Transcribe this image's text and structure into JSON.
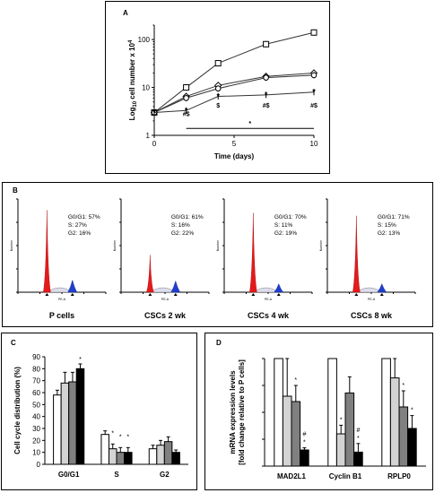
{
  "chart_data": [
    {
      "panel": "A",
      "type": "line",
      "xlabel": "Time (days)",
      "ylabel_prefix": "Log",
      "ylabel_sub": "10",
      "ylabel_mid": " cell number x 10",
      "ylabel_sup": "4",
      "xlim": [
        0,
        10
      ],
      "ylim": [
        1,
        200
      ],
      "yscale": "log",
      "x_ticks": [
        "0",
        "5",
        "10"
      ],
      "y_ticks": [
        "1",
        "10",
        "100"
      ],
      "x": [
        0,
        2,
        4,
        7,
        10
      ],
      "series": [
        {
          "marker": "square",
          "values": [
            3,
            10,
            32,
            80,
            140
          ]
        },
        {
          "marker": "diamond",
          "values": [
            3,
            6.5,
            11,
            17,
            20
          ]
        },
        {
          "marker": "circle",
          "values": [
            3,
            6.0,
            9.5,
            16,
            18
          ]
        },
        {
          "marker": "star",
          "values": [
            3,
            3.3,
            6.5,
            7.0,
            8.0
          ]
        }
      ],
      "annotations": [
        {
          "x": 2,
          "y": 2.5,
          "text": "#$"
        },
        {
          "x": 4,
          "y": 3.8,
          "text": "$"
        },
        {
          "x": 7,
          "y": 3.8,
          "text": "#$"
        },
        {
          "x": 10,
          "y": 3.8,
          "text": "#$"
        },
        {
          "x": 6,
          "y": 1.6,
          "text": "*"
        }
      ]
    },
    {
      "panel": "B",
      "type": "histogram",
      "axis_x_label": "PE-A",
      "axis_y_label": "Number",
      "histograms": [
        {
          "title": "P cells",
          "g0g1": "G0/G1: 57%",
          "s": "S: 27%",
          "g2": "G2: 16%",
          "g1_height": 0.88,
          "g2_height": 0.13
        },
        {
          "title": "CSCs 2 wk",
          "g0g1": "G0/G1: 61%",
          "s": "S: 16%",
          "g2": "G2: 22%",
          "g1_height": 0.4,
          "g2_height": 0.12
        },
        {
          "title": "CSCs 4 wk",
          "g0g1": "G0/G1: 70%",
          "s": "S: 11%",
          "g2": "G2: 19%",
          "g1_height": 0.85,
          "g2_height": 0.09
        },
        {
          "title": "CSCs 8 wk",
          "g0g1": "G0/G1: 71%",
          "s": "S: 15%",
          "g2": "G2: 13%",
          "g1_height": 0.82,
          "g2_height": 0.09
        }
      ]
    },
    {
      "panel": "C",
      "type": "bar",
      "ylabel": "Cell cycle distribution (%)",
      "ylim": [
        0,
        90
      ],
      "y_ticks": [
        "0",
        "10",
        "20",
        "30",
        "40",
        "50",
        "60",
        "70",
        "80",
        "90"
      ],
      "categories": [
        "G0/G1",
        "S",
        "G2"
      ],
      "series": [
        {
          "color": "#ffffff",
          "values": [
            58,
            25,
            13
          ],
          "errors": [
            4,
            3,
            3
          ]
        },
        {
          "color": "#d3d3d3",
          "values": [
            68,
            13,
            16
          ],
          "errors": [
            9,
            4,
            4
          ]
        },
        {
          "color": "#808080",
          "values": [
            69,
            10,
            19
          ],
          "errors": [
            8,
            4,
            4
          ]
        },
        {
          "color": "#000000",
          "values": [
            80,
            10,
            10
          ],
          "errors": [
            4,
            4,
            2
          ]
        }
      ],
      "stars": [
        {
          "category": 0,
          "series": 3,
          "text": "*"
        },
        {
          "category": 1,
          "series": 1,
          "text": "*"
        },
        {
          "category": 1,
          "series": 2,
          "text": "*"
        },
        {
          "category": 1,
          "series": 3,
          "text": "*"
        }
      ]
    },
    {
      "panel": "D",
      "type": "bar",
      "ylabel_line1": "mRNA expression levels",
      "ylabel_line2": "[fold change relative to P cells]",
      "ylim": [
        0,
        1.0
      ],
      "categories": [
        "MAD2L1",
        "Cyclin B1",
        "RPLP0"
      ],
      "series": [
        {
          "color": "#ffffff",
          "values": [
            1.0,
            1.0,
            1.0
          ],
          "errors": [
            0,
            0,
            0
          ]
        },
        {
          "color": "#d3d3d3",
          "values": [
            0.65,
            0.3,
            0.82
          ],
          "errors": [
            0.35,
            0.08,
            0.18
          ]
        },
        {
          "color": "#808080",
          "values": [
            0.6,
            0.68,
            0.55
          ],
          "errors": [
            0.15,
            0.15,
            0.15
          ]
        },
        {
          "color": "#000000",
          "values": [
            0.15,
            0.13,
            0.35
          ],
          "errors": [
            0.02,
            0.08,
            0.12
          ]
        }
      ],
      "stars": [
        {
          "category": 0,
          "series": 2,
          "text": "*"
        },
        {
          "category": 0,
          "series": 3,
          "text": "#"
        },
        {
          "category": 0,
          "series": 3,
          "text": "*"
        },
        {
          "category": 1,
          "series": 1,
          "text": "*"
        },
        {
          "category": 1,
          "series": 3,
          "text": "#"
        },
        {
          "category": 1,
          "series": 3,
          "text": "*"
        },
        {
          "category": 2,
          "series": 2,
          "text": "*"
        },
        {
          "category": 2,
          "series": 3,
          "text": "*"
        }
      ]
    }
  ],
  "panel_letters": {
    "a": "A",
    "b": "B",
    "c": "C",
    "d": "D"
  }
}
